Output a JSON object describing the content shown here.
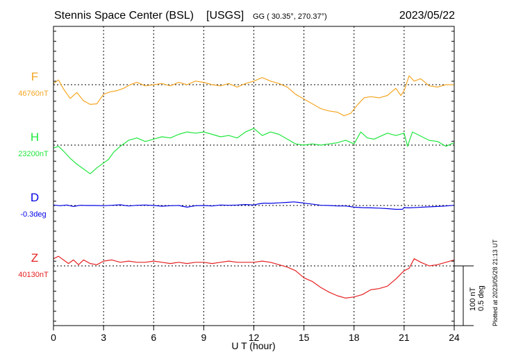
{
  "header": {
    "station": "Stennis Space Center (BSL)",
    "network": "[USGS]",
    "coords": "GG ( 30.35°, 270.37°)",
    "date": "2023/05/22"
  },
  "footer": {
    "plotted": "Plotted at 2023/05/28 21:13 UT"
  },
  "scale_bar": {
    "nt": "100 nT",
    "deg": "0.5 deg",
    "nt_per_bar": 100
  },
  "chart_data": {
    "type": "line",
    "xlabel": "U T (hour)",
    "xlim": [
      0,
      24
    ],
    "xticks": [
      0,
      3,
      6,
      9,
      12,
      15,
      18,
      21,
      24
    ],
    "series": [
      {
        "name": "F",
        "baseline_label": "46760nT",
        "unit": "nT",
        "baseline": 46760,
        "color": "#f5a623",
        "x": [
          0,
          0.3,
          0.6,
          1.0,
          1.4,
          1.8,
          2.2,
          2.6,
          3.0,
          3.4,
          3.8,
          4.2,
          4.6,
          5.0,
          5.5,
          6.0,
          6.5,
          7.0,
          7.5,
          8.0,
          8.5,
          9.0,
          9.5,
          10.0,
          10.5,
          11.0,
          11.5,
          12.0,
          12.5,
          13.0,
          13.5,
          14.0,
          14.5,
          15.0,
          15.5,
          16.0,
          16.5,
          17.0,
          17.4,
          17.8,
          18.2,
          18.6,
          19.0,
          19.5,
          20.0,
          20.5,
          20.8,
          21.0,
          21.3,
          21.6,
          22.0,
          22.5,
          23.0,
          23.5,
          24.0
        ],
        "y": [
          46762,
          46768,
          46753,
          46737,
          46747,
          46733,
          46727,
          46728,
          46744,
          46748,
          46750,
          46754,
          46760,
          46764,
          46758,
          46760,
          46762,
          46758,
          46764,
          46760,
          46766,
          46764,
          46760,
          46758,
          46762,
          46756,
          46762,
          46766,
          46772,
          46766,
          46762,
          46756,
          46744,
          46736,
          46728,
          46720,
          46716,
          46714,
          46708,
          46712,
          46726,
          46738,
          46740,
          46738,
          46742,
          46754,
          46742,
          46750,
          46775,
          46766,
          46770,
          46758,
          46756,
          46760,
          46760
        ]
      },
      {
        "name": "H",
        "baseline_label": "23200nT",
        "unit": "nT",
        "baseline": 23200,
        "color": "#1ee63c",
        "x": [
          0,
          0.3,
          0.6,
          1.0,
          1.4,
          1.8,
          2.2,
          2.6,
          3.0,
          3.3,
          3.6,
          4.0,
          4.5,
          5.0,
          5.5,
          6.0,
          6.5,
          7.0,
          7.5,
          8.0,
          8.5,
          9.0,
          9.5,
          10.0,
          10.5,
          11.0,
          11.5,
          12.0,
          12.5,
          13.0,
          13.5,
          14.0,
          14.5,
          15.0,
          15.5,
          16.0,
          16.5,
          17.0,
          17.5,
          18.0,
          18.4,
          18.8,
          19.2,
          19.6,
          20.0,
          20.5,
          21.0,
          21.2,
          21.5,
          22.0,
          22.5,
          23.0,
          23.5,
          24.0
        ],
        "y": [
          23195,
          23198,
          23190,
          23178,
          23168,
          23160,
          23152,
          23162,
          23170,
          23176,
          23188,
          23198,
          23208,
          23212,
          23206,
          23210,
          23214,
          23212,
          23218,
          23222,
          23220,
          23222,
          23218,
          23214,
          23216,
          23212,
          23222,
          23228,
          23216,
          23222,
          23218,
          23210,
          23202,
          23200,
          23202,
          23200,
          23202,
          23204,
          23208,
          23202,
          23222,
          23212,
          23210,
          23215,
          23220,
          23216,
          23220,
          23198,
          23222,
          23215,
          23208,
          23206,
          23198,
          23204
        ]
      },
      {
        "name": "D",
        "baseline_label": "-0.3deg",
        "unit": "deg",
        "baseline": -0.3,
        "color": "#0000e6",
        "x": [
          0,
          0.4,
          0.8,
          1.2,
          1.6,
          2.0,
          2.5,
          3.0,
          3.5,
          4.0,
          4.5,
          5.0,
          5.5,
          6.0,
          6.5,
          7.0,
          7.5,
          8.0,
          8.5,
          9.0,
          9.5,
          10.0,
          10.5,
          11.0,
          11.5,
          12.0,
          12.3,
          12.6,
          13.0,
          13.5,
          14.0,
          14.4,
          14.8,
          15.2,
          15.6,
          16.0,
          16.5,
          17.0,
          17.5,
          18.0,
          18.5,
          19.0,
          19.5,
          20.0,
          20.5,
          20.9,
          21.0,
          21.3,
          21.8,
          22.3,
          23.0,
          23.5,
          24.0
        ],
        "y": [
          -0.296,
          -0.302,
          -0.296,
          -0.308,
          -0.298,
          -0.3,
          -0.3,
          -0.302,
          -0.298,
          -0.294,
          -0.304,
          -0.298,
          -0.296,
          -0.3,
          -0.306,
          -0.302,
          -0.3,
          -0.314,
          -0.302,
          -0.3,
          -0.304,
          -0.296,
          -0.298,
          -0.296,
          -0.292,
          -0.296,
          -0.286,
          -0.28,
          -0.282,
          -0.278,
          -0.274,
          -0.27,
          -0.276,
          -0.284,
          -0.29,
          -0.298,
          -0.3,
          -0.304,
          -0.304,
          -0.314,
          -0.318,
          -0.32,
          -0.322,
          -0.326,
          -0.332,
          -0.332,
          -0.318,
          -0.32,
          -0.316,
          -0.312,
          -0.308,
          -0.304,
          -0.298
        ]
      },
      {
        "name": "Z",
        "baseline_label": "40130nT",
        "unit": "nT",
        "baseline": 40130,
        "color": "#e62020",
        "x": [
          0,
          0.3,
          0.6,
          0.9,
          1.2,
          1.5,
          1.8,
          2.2,
          2.6,
          3.0,
          3.5,
          4.0,
          4.5,
          5.0,
          5.5,
          6.0,
          6.5,
          7.0,
          7.5,
          8.0,
          8.5,
          9.0,
          9.5,
          10.0,
          10.5,
          11.0,
          11.5,
          12.0,
          12.5,
          13.0,
          13.5,
          14.0,
          14.5,
          15.0,
          15.5,
          16.0,
          16.5,
          17.0,
          17.5,
          18.0,
          18.5,
          19.0,
          19.5,
          20.0,
          20.5,
          21.0,
          21.3,
          21.6,
          22.0,
          22.5,
          23.0,
          23.5,
          24.0
        ],
        "y": [
          40142,
          40146,
          40140,
          40134,
          40140,
          40132,
          40140,
          40134,
          40132,
          40138,
          40140,
          40136,
          40138,
          40136,
          40136,
          40138,
          40136,
          40134,
          40136,
          40134,
          40136,
          40136,
          40134,
          40136,
          40138,
          40136,
          40136,
          40136,
          40138,
          40136,
          40132,
          40128,
          40122,
          40110,
          40104,
          40094,
          40086,
          40080,
          40076,
          40078,
          40082,
          40090,
          40092,
          40096,
          40108,
          40122,
          40126,
          40142,
          40136,
          40130,
          40132,
          40136,
          40140
        ]
      }
    ]
  }
}
